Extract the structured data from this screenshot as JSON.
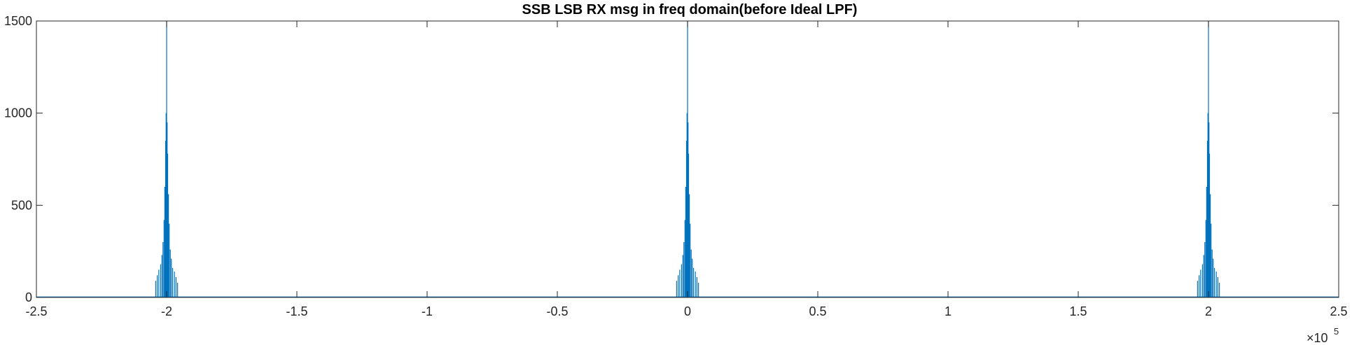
{
  "chart_data": {
    "type": "line",
    "title": "SSB LSB RX msg in freq domain(before Ideal LPF)",
    "xlabel": "",
    "ylabel": "",
    "xlim": [
      -250000,
      250000
    ],
    "ylim": [
      0,
      1500
    ],
    "x_ticks": [
      -250000,
      -200000,
      -150000,
      -100000,
      -50000,
      0,
      50000,
      100000,
      150000,
      200000,
      250000
    ],
    "x_tick_labels": [
      "-2.5",
      "-2",
      "-1.5",
      "-1",
      "-0.5",
      "0",
      "0.5",
      "1",
      "1.5",
      "2",
      "2.5"
    ],
    "x_exponent": {
      "base": "×10",
      "power": "5"
    },
    "y_ticks": [
      0,
      500,
      1000,
      1500
    ],
    "y_tick_labels": [
      "0",
      "500",
      "1000",
      "1500"
    ],
    "grid": false,
    "legend": "none",
    "series": [
      {
        "color": "#0072BD",
        "peak_centers": [
          -200000,
          0,
          200000
        ],
        "peaks": [
          {
            "offset": 0,
            "value": 1500
          },
          {
            "offset": -200,
            "value": 1000
          },
          {
            "offset": 200,
            "value": 950
          },
          {
            "offset": -400,
            "value": 850
          },
          {
            "offset": 400,
            "value": 780
          },
          {
            "offset": -700,
            "value": 600
          },
          {
            "offset": 700,
            "value": 560
          },
          {
            "offset": -1000,
            "value": 420
          },
          {
            "offset": 1000,
            "value": 400
          },
          {
            "offset": -1400,
            "value": 300
          },
          {
            "offset": 1400,
            "value": 260
          },
          {
            "offset": -1800,
            "value": 230
          },
          {
            "offset": 1800,
            "value": 210
          },
          {
            "offset": -2300,
            "value": 180
          },
          {
            "offset": 2300,
            "value": 160
          },
          {
            "offset": -3000,
            "value": 150
          },
          {
            "offset": 3000,
            "value": 140
          },
          {
            "offset": -3600,
            "value": 120
          },
          {
            "offset": 3600,
            "value": 110
          },
          {
            "offset": -4200,
            "value": 90
          },
          {
            "offset": 4200,
            "value": 80
          }
        ]
      }
    ]
  }
}
